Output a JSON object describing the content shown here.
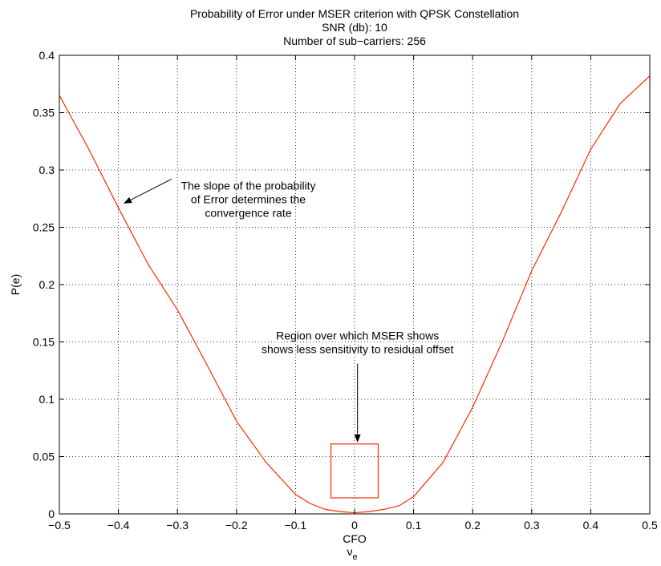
{
  "chart_data": {
    "type": "line",
    "title": [
      "Probability of Error under MSER criterion with QPSK Constellation",
      "SNR (db): 10",
      "Number of sub−carriers: 256"
    ],
    "xlabel": "CFO",
    "xlabel_symbol": "ν",
    "xlabel_subscript": "e",
    "ylabel": "P(e)",
    "xlim": [
      -0.5,
      0.5
    ],
    "ylim": [
      0,
      0.4
    ],
    "xticks": [
      -0.5,
      -0.4,
      -0.3,
      -0.2,
      -0.1,
      0,
      0.1,
      0.2,
      0.3,
      0.4,
      0.5
    ],
    "xtick_labels": [
      "−0.5",
      "−0.4",
      "−0.3",
      "−0.2",
      "−0.1",
      "0",
      "0.1",
      "0.2",
      "0.3",
      "0.4",
      "0.5"
    ],
    "yticks": [
      0,
      0.05,
      0.1,
      0.15,
      0.2,
      0.25,
      0.3,
      0.35,
      0.4
    ],
    "ytick_labels": [
      "0",
      "0.05",
      "0.1",
      "0.15",
      "0.2",
      "0.25",
      "0.3",
      "0.35",
      "0.4"
    ],
    "grid": true,
    "line_color": "#ff2a00",
    "series": [
      {
        "x": [
          -0.5,
          -0.45,
          -0.4,
          -0.35,
          -0.3,
          -0.25,
          -0.2,
          -0.15,
          -0.1,
          -0.075,
          -0.05,
          -0.025,
          0,
          0.025,
          0.05,
          0.075,
          0.1,
          0.15,
          0.2,
          0.25,
          0.3,
          0.35,
          0.4,
          0.45,
          0.5
        ],
        "y": [
          0.365,
          0.318,
          0.267,
          0.218,
          0.178,
          0.13,
          0.081,
          0.045,
          0.017,
          0.009,
          0.004,
          0.002,
          0.001,
          0.002,
          0.004,
          0.007,
          0.015,
          0.045,
          0.093,
          0.15,
          0.212,
          0.263,
          0.318,
          0.358,
          0.382
        ]
      }
    ],
    "annotations": [
      {
        "lines": [
          "The slope of the probability",
          "of Error determines the",
          "convergence rate"
        ],
        "text_at": [
          -0.18,
          0.283
        ],
        "arrow_from": [
          -0.31,
          0.292
        ],
        "arrow_to": [
          -0.39,
          0.271
        ]
      },
      {
        "lines": [
          "Region over which MSER shows",
          "shows less sensitivity to residual offset"
        ],
        "text_at": [
          0.005,
          0.152
        ],
        "arrow_from": [
          0.005,
          0.131
        ],
        "arrow_to": [
          0.005,
          0.063
        ]
      }
    ],
    "highlight_box": {
      "x": [
        -0.04,
        0.04
      ],
      "y": [
        0.014,
        0.061
      ]
    }
  }
}
